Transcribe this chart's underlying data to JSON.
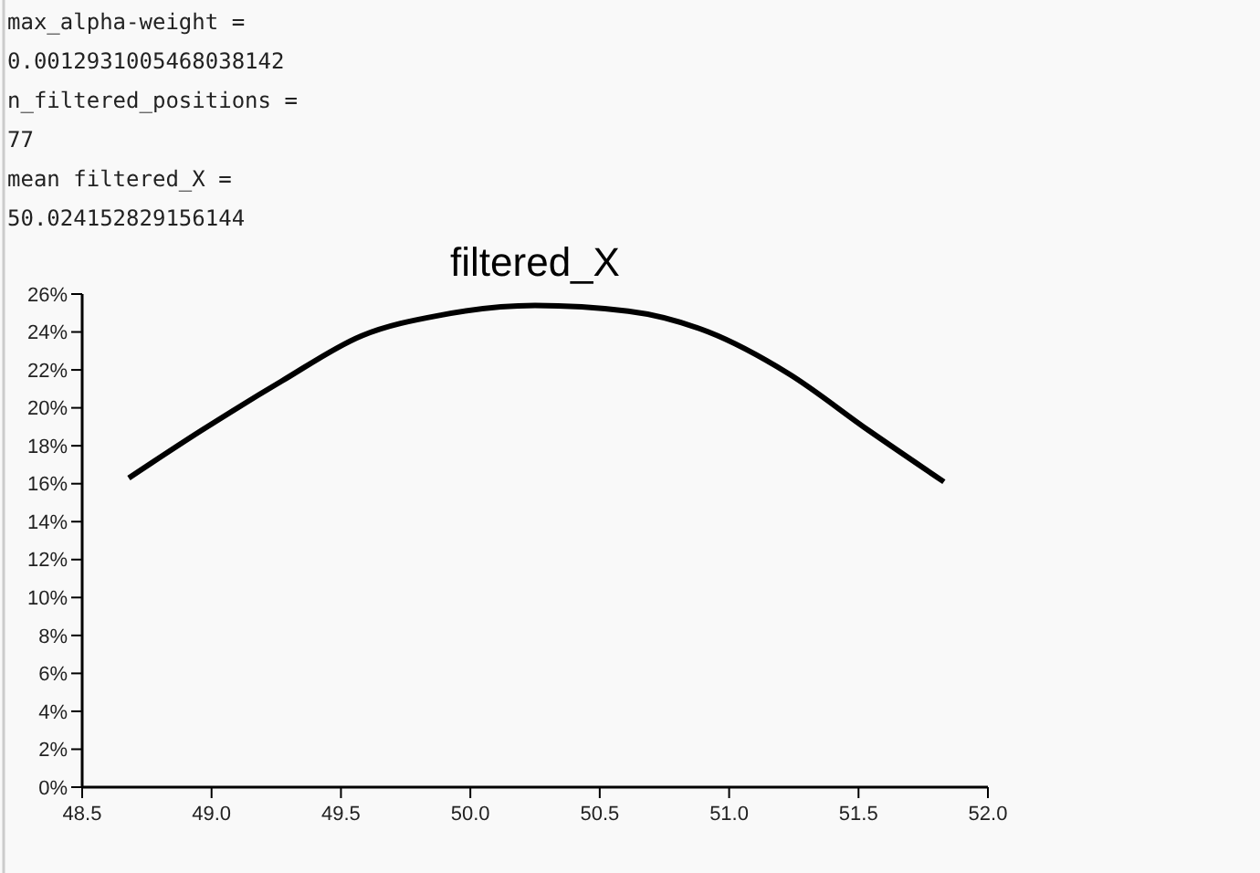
{
  "chart_data": {
    "type": "line",
    "title": "filtered_X",
    "annotations": [
      "max_alpha-weight =",
      "0.0012931005468038142",
      "n_filtered_positions =",
      "77",
      "mean filtered_X =",
      "50.024152829156144"
    ],
    "x": [
      48.68,
      48.96,
      49.27,
      49.58,
      49.89,
      50.25,
      50.61,
      50.92,
      51.23,
      51.54,
      51.83
    ],
    "series": [
      {
        "color": "#000000",
        "values": [
          16.3,
          18.8,
          21.4,
          23.8,
          24.9,
          25.4,
          25.1,
          24.0,
          21.8,
          18.8,
          16.1
        ]
      }
    ],
    "xlim": [
      48.5,
      52.0
    ],
    "xticks": [
      {
        "value": 48.5,
        "label": "48.5"
      },
      {
        "value": 49,
        "label": "49.0"
      },
      {
        "value": 49.5,
        "label": "49.5"
      },
      {
        "value": 50,
        "label": "50.0"
      },
      {
        "value": 50.5,
        "label": "50.5"
      },
      {
        "value": 51,
        "label": "51.0"
      },
      {
        "value": 51.5,
        "label": "51.5"
      },
      {
        "value": 52,
        "label": "52.0"
      }
    ],
    "ylim": [
      0,
      26
    ],
    "yticks": [
      {
        "value": 0,
        "label": "0%"
      },
      {
        "value": 2,
        "label": "2%"
      },
      {
        "value": 4,
        "label": "4%"
      },
      {
        "value": 6,
        "label": "6%"
      },
      {
        "value": 8,
        "label": "8%"
      },
      {
        "value": 10,
        "label": "10%"
      },
      {
        "value": 12,
        "label": "12%"
      },
      {
        "value": 14,
        "label": "14%"
      },
      {
        "value": 16,
        "label": "16%"
      },
      {
        "value": 18,
        "label": "18%"
      },
      {
        "value": 20,
        "label": "20%"
      },
      {
        "value": 22,
        "label": "22%"
      },
      {
        "value": 24,
        "label": "24%"
      },
      {
        "value": 26,
        "label": "26%"
      }
    ],
    "grid": false,
    "line_style": "solid"
  }
}
